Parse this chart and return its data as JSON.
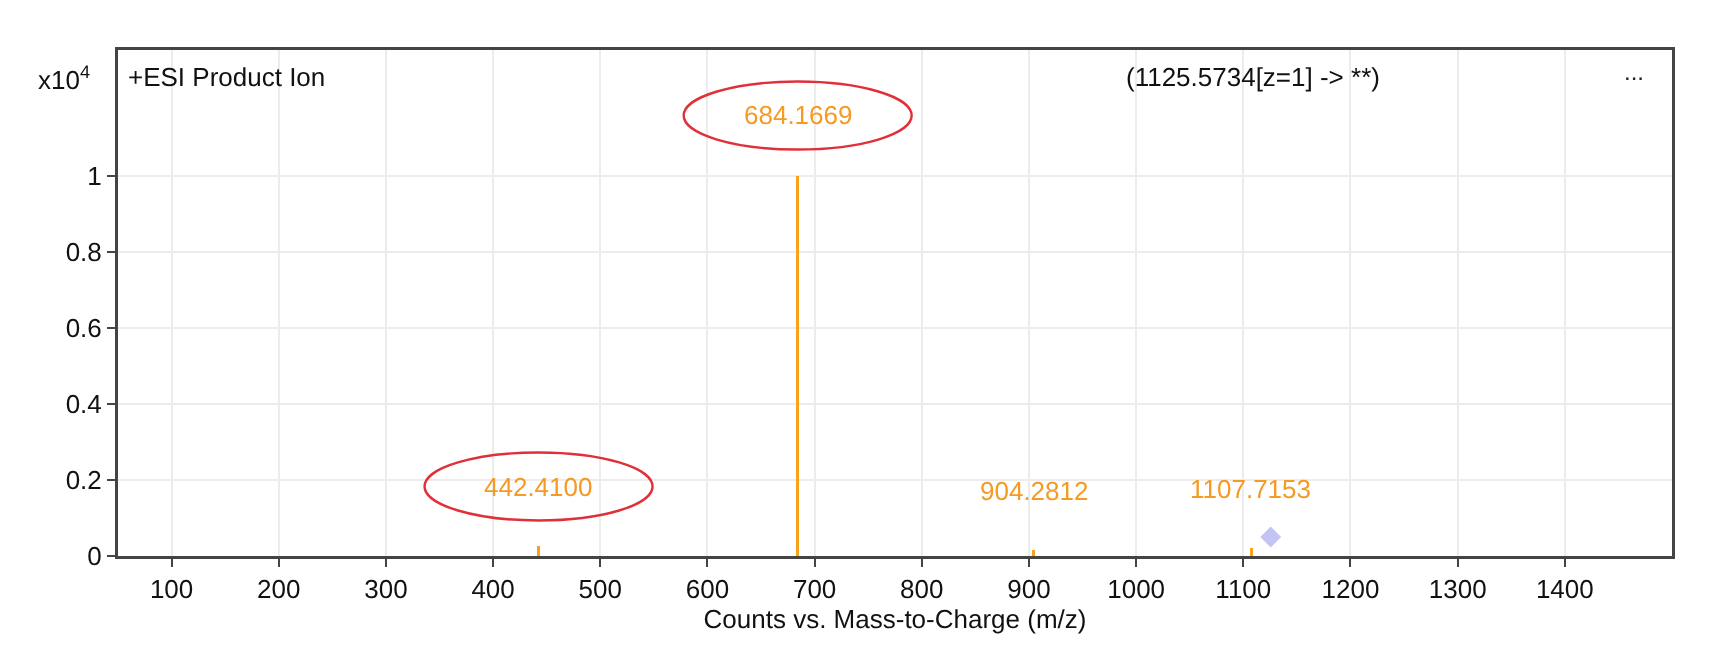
{
  "chart_data": {
    "type": "bar",
    "title": "+ESI Product Ion",
    "subtitle": "(1125.5734[z=1] -> **)",
    "xlabel": "Counts vs. Mass-to-Charge (m/z)",
    "ylabel": "x10$^{4}$",
    "series": [
      {
        "color": "#f7a21b",
        "x": [
          442.41,
          684.1669,
          904.2812,
          1107.7153
        ],
        "values": [
          0.025,
          1.0,
          0.015,
          0.02
        ]
      },
      {
        "type": "scatter",
        "marker": "diamond",
        "color": "#c4c4f4",
        "x": [
          1125.5734
        ],
        "values": [
          0.05
        ]
      }
    ],
    "annotations": [
      {
        "text": "684.1669",
        "x": 684.1669,
        "y": 1.0
      },
      {
        "text": "442.4100",
        "x": 442.41,
        "y": 0.025
      },
      {
        "text": "904.2812",
        "x": 904.2812,
        "y": 0.015
      },
      {
        "text": "1107.7153",
        "x": 1107.7153,
        "y": 0.02
      },
      "..."
    ],
    "xlim": [
      50,
      1500
    ],
    "xticks": [
      100,
      200,
      300,
      400,
      500,
      600,
      700,
      800,
      900,
      1000,
      1100,
      1200,
      1300,
      1400
    ],
    "ylim": [
      0,
      1.33
    ],
    "yticks": [
      0,
      0.2,
      0.4,
      0.6,
      0.8,
      1
    ],
    "grid": true
  }
}
